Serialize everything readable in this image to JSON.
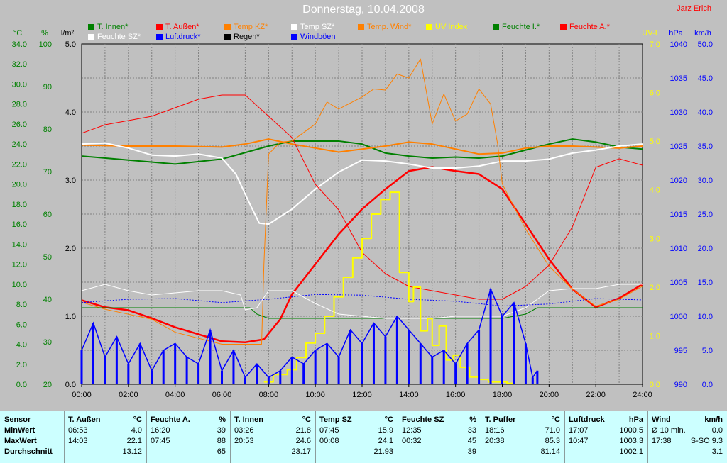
{
  "header": {
    "title": "Donnerstag, 10.04.2008",
    "author": "Jarz Erich"
  },
  "legend": [
    {
      "label": "T. Innen*",
      "color": "#008000"
    },
    {
      "label": "T. Außen*",
      "color": "#ff0000"
    },
    {
      "label": "Temp KZ*",
      "color": "#ff8000"
    },
    {
      "label": "Temp SZ*",
      "color": "#ffffff"
    },
    {
      "label": "Temp. Wind*",
      "color": "#ff8000"
    },
    {
      "label": "UV Index",
      "color": "#ffff00"
    },
    {
      "label": "Feuchte I.*",
      "color": "#008000"
    },
    {
      "label": "Feuchte A.*",
      "color": "#ff0000"
    },
    {
      "label": "Feuchte SZ*",
      "color": "#ffffff"
    },
    {
      "label": "Luftdruck*",
      "color": "#0000ff"
    },
    {
      "label": "Regen*",
      "color": "#000000"
    },
    {
      "label": "Windböen",
      "color": "#0000ff"
    }
  ],
  "axes": {
    "temp": {
      "unit": "°C",
      "color": "#008000",
      "ticks": [
        "34.0",
        "32.0",
        "30.0",
        "28.0",
        "26.0",
        "24.0",
        "22.0",
        "20.0",
        "18.0",
        "16.0",
        "14.0",
        "12.0",
        "10.0",
        "8.0",
        "6.0",
        "4.0",
        "2.0",
        "0.0"
      ]
    },
    "humidity": {
      "unit": "%",
      "color": "#008000",
      "ticks": [
        "100",
        "90",
        "80",
        "70",
        "60",
        "50",
        "40",
        "30",
        "20"
      ]
    },
    "rain": {
      "unit": "l/m²",
      "color": "#000000",
      "ticks": [
        "5.0",
        "4.0",
        "3.0",
        "2.0",
        "1.0",
        "0.0"
      ]
    },
    "uv": {
      "unit": "UV-I",
      "color": "#ffff00",
      "ticks": [
        "7.0",
        "6.0",
        "5.0",
        "4.0",
        "3.0",
        "2.0",
        "1.0",
        "0.0"
      ]
    },
    "pressure": {
      "unit": "hPa",
      "color": "#0000ff",
      "ticks": [
        "1040",
        "1035",
        "1030",
        "1025",
        "1020",
        "1015",
        "1010",
        "1005",
        "1000",
        "995",
        "990"
      ]
    },
    "wind": {
      "unit": "km/h",
      "color": "#0000ff",
      "ticks": [
        "50.0",
        "45.0",
        "40.0",
        "35.0",
        "30.0",
        "25.0",
        "20.0",
        "15.0",
        "10.0",
        "5.0",
        "0.0"
      ]
    },
    "time": {
      "ticks": [
        "00:00",
        "02:00",
        "04:00",
        "06:00",
        "08:00",
        "10:00",
        "12:00",
        "14:00",
        "16:00",
        "18:00",
        "20:00",
        "22:00",
        "24:00"
      ]
    }
  },
  "chart_data": {
    "type": "line",
    "title": "Donnerstag, 10.04.2008",
    "x": [
      "00:00",
      "01:00",
      "02:00",
      "03:00",
      "04:00",
      "05:00",
      "06:00",
      "07:00",
      "08:00",
      "09:00",
      "10:00",
      "11:00",
      "12:00",
      "13:00",
      "14:00",
      "15:00",
      "16:00",
      "17:00",
      "18:00",
      "19:00",
      "20:00",
      "21:00",
      "22:00",
      "23:00",
      "24:00"
    ],
    "xlim": [
      0,
      24
    ],
    "grid": true,
    "series": [
      {
        "name": "T. Innen*",
        "axis": "temp",
        "color": "#008000",
        "width": 2,
        "x": [
          0,
          2,
          4,
          6,
          8,
          9,
          10,
          11,
          12,
          13,
          14,
          15,
          16,
          17,
          18,
          19,
          20,
          21,
          22,
          23,
          24
        ],
        "values": [
          22.8,
          22.4,
          22.0,
          22.5,
          23.8,
          24.3,
          24.3,
          24.3,
          24.0,
          23.1,
          22.8,
          22.6,
          22.7,
          22.6,
          22.8,
          23.4,
          24.0,
          24.5,
          24.2,
          23.7,
          23.5
        ]
      },
      {
        "name": "T. Außen*",
        "axis": "temp",
        "color": "#ff0000",
        "width": 2.5,
        "x": [
          0,
          1,
          2,
          3,
          4,
          5,
          6,
          7,
          7.8,
          8.5,
          9,
          10,
          11,
          12,
          13,
          14,
          15,
          16,
          17,
          18,
          19,
          20,
          21,
          22,
          23,
          24
        ],
        "values": [
          8.4,
          7.7,
          7.4,
          6.6,
          5.7,
          5.0,
          4.3,
          4.2,
          4.5,
          6.5,
          9.0,
          12.0,
          15.0,
          17.5,
          19.5,
          21.3,
          21.7,
          21.3,
          21.0,
          19.5,
          16.0,
          12.5,
          9.5,
          7.7,
          8.6,
          10.0
        ]
      },
      {
        "name": "Temp KZ*",
        "axis": "temp",
        "color": "#ff8000",
        "width": 2,
        "x": [
          0,
          2,
          4,
          6,
          7,
          8,
          9,
          10,
          11,
          12,
          13,
          14,
          15,
          16,
          17,
          18,
          19,
          20,
          21,
          22,
          23,
          24
        ],
        "values": [
          23.9,
          23.8,
          23.8,
          23.7,
          24.0,
          24.5,
          24.0,
          23.6,
          23.2,
          23.5,
          23.8,
          24.2,
          24.0,
          23.5,
          23.0,
          23.1,
          23.6,
          23.8,
          23.8,
          23.7,
          23.6,
          23.8
        ]
      },
      {
        "name": "Temp SZ*",
        "axis": "temp",
        "color": "#ffffff",
        "width": 2,
        "x": [
          0,
          1,
          2,
          3,
          4,
          5,
          6,
          6.6,
          7.2,
          7.6,
          8.0,
          9,
          10,
          11,
          12,
          13,
          14,
          15,
          16,
          17,
          18,
          19,
          20,
          21,
          22,
          23,
          24
        ],
        "values": [
          24.0,
          24.1,
          23.6,
          22.9,
          22.8,
          23.0,
          22.6,
          21.0,
          18.0,
          16.1,
          16.0,
          17.5,
          19.5,
          21.2,
          22.4,
          22.3,
          22.0,
          21.6,
          21.6,
          21.8,
          22.3,
          22.3,
          22.5,
          23.1,
          23.4,
          23.8,
          24.0
        ]
      },
      {
        "name": "Temp. Wind*",
        "axis": "temp",
        "color": "#ff8000",
        "width": 1,
        "x": [
          0,
          1,
          2,
          3,
          4,
          5,
          6,
          7,
          7.7,
          7.8,
          8.0,
          8.5,
          9,
          10,
          10.5,
          11,
          12,
          12.5,
          13,
          13.5,
          14,
          14.5,
          15,
          15.5,
          16,
          16.5,
          17,
          17.5,
          17.8,
          18,
          19,
          20,
          21,
          22,
          23,
          24
        ],
        "values": [
          8.2,
          7.5,
          7.0,
          6.5,
          5.2,
          4.6,
          4.0,
          4.0,
          4.0,
          12.0,
          23.0,
          24.2,
          24.3,
          26.0,
          28.2,
          27.5,
          28.7,
          29.5,
          29.4,
          31.0,
          30.6,
          32.5,
          26.0,
          29.0,
          26.3,
          27.0,
          29.5,
          28.0,
          24.0,
          20.0,
          15.5,
          11.8,
          9.5,
          7.8,
          8.5,
          9.8
        ]
      },
      {
        "name": "Feuchte I.*",
        "axis": "humidity",
        "color": "#008000",
        "width": 1,
        "x": [
          0,
          2,
          4,
          6,
          7.2,
          7.5,
          8,
          9,
          10,
          11,
          12,
          13,
          14,
          15,
          16,
          17,
          18,
          19,
          19.5,
          20,
          21,
          22,
          23,
          24
        ],
        "values": [
          38.0,
          38.0,
          38.0,
          38.0,
          38.0,
          36.5,
          35.5,
          35.5,
          35.5,
          35.5,
          35.5,
          35.5,
          35.5,
          35.5,
          35.5,
          35.5,
          35.5,
          36.5,
          38.0,
          38.0,
          38.0,
          38.0,
          38.0,
          38.0
        ]
      },
      {
        "name": "Feuchte A.*",
        "axis": "humidity",
        "color": "#ff0000",
        "width": 1,
        "x": [
          0,
          1,
          2,
          3,
          4,
          5,
          6,
          7,
          8,
          9,
          10,
          11,
          12,
          13,
          14,
          15,
          16,
          17,
          18,
          19,
          20,
          21,
          22,
          23,
          24
        ],
        "values": [
          79.0,
          81.0,
          82.0,
          83.0,
          85.0,
          87.0,
          88.0,
          88.0,
          83.0,
          78.0,
          67.0,
          61.0,
          51.0,
          46.0,
          43.0,
          42.0,
          41.0,
          40.0,
          40.0,
          43.0,
          48.0,
          57.0,
          71.0,
          73.0,
          71.5
        ]
      },
      {
        "name": "Feuchte SZ*",
        "axis": "humidity",
        "color": "#ffffff",
        "width": 1,
        "x": [
          0,
          1,
          2,
          3,
          4,
          5,
          6,
          6.8,
          7,
          7.5,
          8,
          9,
          10,
          11,
          12,
          13,
          14,
          15,
          16,
          17,
          18,
          19,
          20,
          21,
          22,
          23,
          24
        ],
        "values": [
          42.0,
          43.5,
          42.0,
          41.0,
          41.5,
          42.0,
          42.0,
          41.0,
          37.5,
          38.0,
          42.0,
          42.0,
          39.0,
          36.5,
          36.0,
          35.5,
          35.5,
          35.5,
          36.0,
          36.0,
          36.0,
          38.0,
          42.0,
          42.5,
          42.5,
          43.5,
          43.5
        ]
      },
      {
        "name": "Luftdruck*",
        "axis": "pressure",
        "color": "#0000ff",
        "width": 1,
        "dash": "2,2",
        "x": [
          0,
          2,
          4,
          6,
          8,
          10,
          12,
          14,
          16,
          18,
          20,
          22,
          24
        ],
        "values": [
          1002.0,
          1002.5,
          1002.6,
          1002.0,
          1002.5,
          1003.2,
          1003.1,
          1002.5,
          1002.2,
          1001.5,
          1001.8,
          1002.6,
          1002.4
        ]
      },
      {
        "name": "UV Index",
        "axis": "uv",
        "color": "#ffff00",
        "width": 2,
        "step": true,
        "x": [
          7.8,
          8.2,
          8.8,
          9.2,
          9.6,
          10.0,
          10.4,
          10.8,
          11.2,
          11.6,
          12.0,
          12.4,
          12.8,
          13.2,
          13.6,
          14.0,
          14.2,
          14.5,
          14.8,
          15.0,
          15.3,
          15.6,
          15.9,
          16.2,
          16.6,
          17.0,
          17.4,
          17.8,
          18.2,
          18.5
        ],
        "values": [
          0.05,
          0.2,
          0.3,
          0.55,
          0.85,
          1.05,
          1.4,
          1.8,
          2.2,
          2.6,
          3.0,
          3.5,
          3.8,
          3.95,
          2.3,
          1.7,
          2.0,
          1.1,
          1.35,
          0.8,
          1.2,
          0.5,
          0.6,
          0.35,
          0.15,
          0.1,
          0.05,
          0.05,
          0.02,
          0
        ]
      },
      {
        "name": "Windböen",
        "axis": "wind",
        "color": "#0000ff",
        "width": 2,
        "x": [
          0,
          0.5,
          1,
          1.5,
          2,
          2.5,
          3,
          3.5,
          4,
          4.5,
          5,
          5.5,
          6,
          6.5,
          7,
          7.5,
          8,
          8.5,
          9,
          9.5,
          10,
          10.5,
          11,
          11.5,
          12,
          12.5,
          13,
          13.5,
          14,
          14.5,
          15,
          15.5,
          16,
          16.5,
          17,
          17.5,
          18,
          18.5,
          19,
          19.3,
          19.5
        ],
        "values": [
          5,
          9,
          4,
          7,
          3,
          6,
          2,
          5,
          6,
          4,
          3,
          8,
          2,
          5,
          1,
          3,
          1,
          2,
          4,
          3,
          5,
          6,
          4,
          8,
          6,
          9,
          7,
          10,
          8,
          6,
          4,
          5,
          3,
          6,
          8,
          14,
          10,
          12,
          6,
          1,
          2
        ]
      }
    ]
  },
  "stats": {
    "row_labels": [
      "Sensor",
      "MinWert",
      "MaxWert",
      "Durchschnitt"
    ],
    "columns": [
      {
        "name": "T. Außen",
        "unit": "°C",
        "min": {
          "time": "06:53",
          "value": "4.0"
        },
        "max": {
          "time": "14:03",
          "value": "22.1"
        },
        "avg": "13.12"
      },
      {
        "name": "Feuchte A.",
        "unit": "%",
        "min": {
          "time": "16:20",
          "value": "39"
        },
        "max": {
          "time": "07:45",
          "value": "88"
        },
        "avg": "65"
      },
      {
        "name": "T. Innen",
        "unit": "°C",
        "min": {
          "time": "03:26",
          "value": "21.8"
        },
        "max": {
          "time": "20:53",
          "value": "24.6"
        },
        "avg": "23.17"
      },
      {
        "name": "Temp SZ",
        "unit": "°C",
        "min": {
          "time": "07:45",
          "value": "15.9"
        },
        "max": {
          "time": "00:08",
          "value": "24.1"
        },
        "avg": "21.93"
      },
      {
        "name": "Feuchte SZ",
        "unit": "%",
        "min": {
          "time": "12:35",
          "value": "33"
        },
        "max": {
          "time": "00:32",
          "value": "45"
        },
        "avg": "39"
      },
      {
        "name": "T. Puffer",
        "unit": "°C",
        "min": {
          "time": "18:16",
          "value": "71.0"
        },
        "max": {
          "time": "20:38",
          "value": "85.3"
        },
        "avg": "81.14"
      },
      {
        "name": "Luftdruck",
        "unit": "hPa",
        "min": {
          "time": "17:07",
          "value": "1000.5"
        },
        "max": {
          "time": "10:47",
          "value": "1003.3"
        },
        "avg": "1002.1"
      },
      {
        "name": "Wind",
        "unit": "km/h",
        "min": {
          "time": "Ø 10 min.",
          "value": "0.0"
        },
        "max": {
          "time": "17:38",
          "value": "S-SO 9.3"
        },
        "avg": "3.1"
      }
    ]
  }
}
